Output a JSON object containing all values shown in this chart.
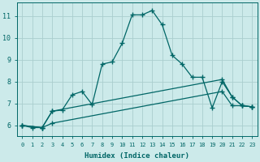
{
  "xlabel": "Humidex (Indice chaleur)",
  "ylabel": "",
  "bg_color": "#cceaea",
  "grid_color": "#aacece",
  "line_color": "#006666",
  "xlim": [
    -0.5,
    23.5
  ],
  "ylim": [
    5.5,
    11.6
  ],
  "xticks": [
    0,
    1,
    2,
    3,
    4,
    5,
    6,
    7,
    8,
    9,
    10,
    11,
    12,
    13,
    14,
    15,
    16,
    17,
    18,
    19,
    20,
    21,
    22,
    23
  ],
  "yticks": [
    6,
    7,
    8,
    9,
    10,
    11
  ],
  "line1_x": [
    0,
    1,
    2,
    3,
    4,
    5,
    6,
    7,
    8,
    9,
    10,
    11,
    12,
    13,
    14,
    15,
    16,
    17,
    18,
    19,
    20,
    21,
    22,
    23
  ],
  "line1_y": [
    6.0,
    5.9,
    5.9,
    6.65,
    6.7,
    7.4,
    7.55,
    6.95,
    8.8,
    8.9,
    9.75,
    11.05,
    11.05,
    11.25,
    10.6,
    9.2,
    8.8,
    8.2,
    8.2,
    6.8,
    8.0,
    7.3,
    6.9,
    6.85
  ],
  "line2_x": [
    0,
    2,
    3,
    20,
    21,
    22,
    23
  ],
  "line2_y": [
    6.0,
    5.9,
    6.65,
    8.1,
    7.3,
    6.9,
    6.85
  ],
  "line3_x": [
    0,
    2,
    3,
    20,
    21,
    22,
    23
  ],
  "line3_y": [
    6.0,
    5.9,
    6.1,
    7.55,
    6.9,
    6.9,
    6.85
  ]
}
